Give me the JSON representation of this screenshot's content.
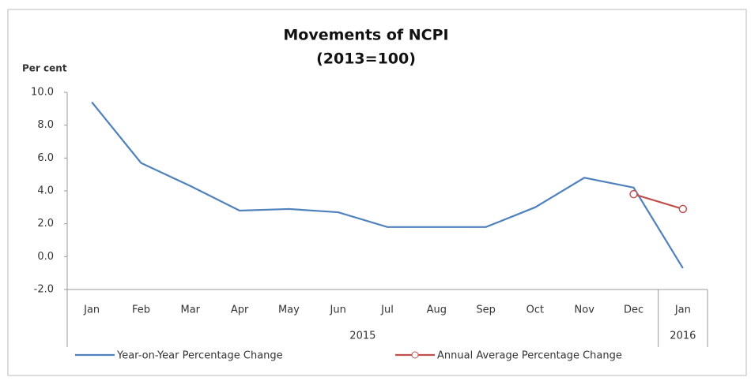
{
  "chart_data": {
    "type": "line",
    "title": "Movements of NCPI",
    "subtitle": "(2013=100)",
    "y_label": "Per cent",
    "categories": [
      "Jan",
      "Feb",
      "Mar",
      "Apr",
      "May",
      "Jun",
      "Jul",
      "Aug",
      "Sep",
      "Oct",
      "Nov",
      "Dec",
      "Jan"
    ],
    "groups": [
      {
        "label": "2015",
        "span": 12
      },
      {
        "label": "2016",
        "span": 1
      }
    ],
    "series": [
      {
        "name": "Year-on-Year Percentage Change",
        "color": "#4f81bd",
        "marker": false,
        "values": [
          9.4,
          5.7,
          4.3,
          2.8,
          2.9,
          2.7,
          1.8,
          1.8,
          1.8,
          3.0,
          4.8,
          4.2,
          -0.7
        ]
      },
      {
        "name": "Annual Average Percentage Change",
        "color": "#c0504d",
        "marker": true,
        "values": [
          null,
          null,
          null,
          null,
          null,
          null,
          null,
          null,
          null,
          null,
          null,
          3.8,
          2.9
        ]
      }
    ],
    "ylim": [
      -2,
      10
    ],
    "yticks": [
      {
        "value": -2,
        "label": "-2.0"
      },
      {
        "value": 0,
        "label": "0.0"
      },
      {
        "value": 2,
        "label": "2.0"
      },
      {
        "value": 4,
        "label": "4.0"
      },
      {
        "value": 6,
        "label": "6.0"
      },
      {
        "value": 8,
        "label": "8.0"
      },
      {
        "value": 10,
        "label": "10.0"
      }
    ],
    "grid": false,
    "legend": "bottom"
  }
}
